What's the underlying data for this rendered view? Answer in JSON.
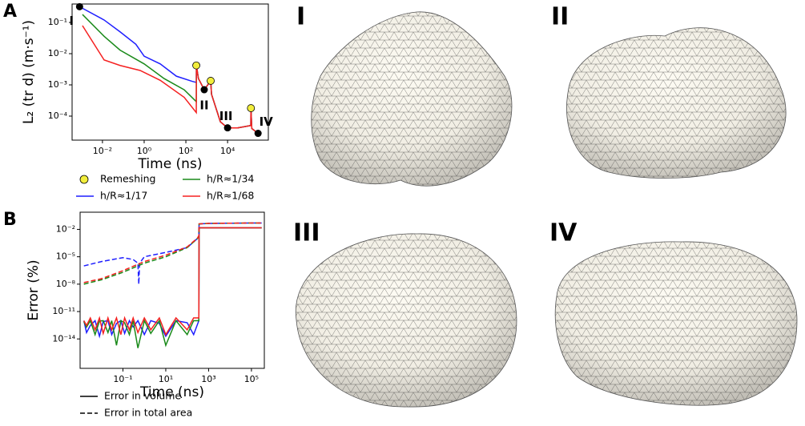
{
  "chart_data": [
    {
      "type": "line",
      "panel": "A",
      "xlabel": "Time (ns)",
      "ylabel": "L₂ (tr d) (m·s⁻¹)",
      "xscale": "log",
      "yscale": "log",
      "xlim": [
        0.00035,
        900000
      ],
      "ylim": [
        1.7e-05,
        0.39
      ],
      "xticks": [
        {
          "value": 0.01,
          "label": "10⁻²"
        },
        {
          "value": 1,
          "label": "10⁰"
        },
        {
          "value": 100,
          "label": "10²"
        },
        {
          "value": 10000,
          "label": "10⁴"
        }
      ],
      "yticks": [
        {
          "value": 0.0001,
          "label": "10⁻⁴"
        },
        {
          "value": 0.001,
          "label": "10⁻³"
        },
        {
          "value": 0.01,
          "label": "10⁻²"
        },
        {
          "value": 0.1,
          "label": "10⁻¹"
        }
      ],
      "series": [
        {
          "name": "Remeshing",
          "color": "#f2ee3c",
          "marker": "o",
          "x": [
            316,
            1550,
            132000
          ],
          "values": [
            0.0042,
            0.00135,
            0.00018
          ]
        },
        {
          "name": "h/R≈1/17",
          "color": "#1f1fff",
          "x": [
            0.0008,
            0.012,
            0.07,
            0.4,
            1,
            5.9,
            35,
            200,
            316,
            320,
            400,
            760,
            1550,
            1700,
            4500,
            10000,
            30000,
            130000,
            132000,
            145000,
            290000
          ],
          "values": [
            0.32,
            0.12,
            0.05,
            0.02,
            0.0083,
            0.0047,
            0.0019,
            0.0013,
            0.0012,
            0.0042,
            0.0016,
            0.0007,
            0.00135,
            0.0005,
            6.6e-05,
            4.2e-05,
            4.2e-05,
            5e-05,
            0.00018,
            4e-05,
            2.8e-05
          ]
        },
        {
          "name": "h/R≈1/34",
          "color": "#1a8a1a",
          "x": [
            0.0011,
            0.012,
            0.07,
            1,
            9,
            83,
            316,
            320,
            400,
            760,
            1550,
            1700,
            4500,
            10000,
            30000,
            130000,
            132000,
            145000,
            290000
          ],
          "values": [
            0.18,
            0.036,
            0.013,
            0.0047,
            0.0016,
            0.0007,
            0.00029,
            0.0042,
            0.0016,
            0.0007,
            0.00135,
            0.0005,
            6.6e-05,
            4.2e-05,
            4.2e-05,
            5e-05,
            0.00018,
            4e-05,
            2.8e-05
          ]
        },
        {
          "name": "h/R≈1/68",
          "color": "#f52020",
          "x": [
            0.0011,
            0.012,
            0.07,
            0.64,
            5.9,
            83,
            316,
            320,
            400,
            760,
            1550,
            1700,
            4500,
            10000,
            30000,
            130000,
            132000,
            145000,
            290000
          ],
          "values": [
            0.079,
            0.0063,
            0.0042,
            0.0029,
            0.0014,
            0.0004,
            0.00013,
            0.0042,
            0.0016,
            0.0007,
            0.00135,
            0.0005,
            6.6e-05,
            4.2e-05,
            4.2e-05,
            5e-05,
            0.00018,
            4e-05,
            2.8e-05
          ]
        }
      ],
      "annotations": [
        {
          "text": "I",
          "x": 0.0008,
          "y": 0.32
        },
        {
          "text": "II",
          "x": 760,
          "y": 0.0007
        },
        {
          "text": "III",
          "x": 10000,
          "y": 4.2e-05
        },
        {
          "text": "IV",
          "x": 290000,
          "y": 2.8e-05
        }
      ]
    },
    {
      "type": "line",
      "panel": "B",
      "xlabel": "Time (ns)",
      "ylabel": "Error (%)",
      "xscale": "log",
      "yscale": "log",
      "xlim": [
        0.001,
        400000
      ],
      "ylim": [
        6e-18,
        0.76
      ],
      "xticks": [
        {
          "value": 0.1,
          "label": "10⁻¹"
        },
        {
          "value": 10,
          "label": "10¹"
        },
        {
          "value": 1000,
          "label": "10³"
        },
        {
          "value": 100000,
          "label": "10⁵"
        }
      ],
      "yticks": [
        {
          "value": 1e-14,
          "label": "10⁻¹⁴"
        },
        {
          "value": 1e-11,
          "label": "10⁻¹¹"
        },
        {
          "value": 1e-08,
          "label": "10⁻⁸"
        },
        {
          "value": 1e-05,
          "label": "10⁻⁵"
        },
        {
          "value": 0.01,
          "label": "10⁻²"
        }
      ],
      "series": [
        {
          "name": "Error in volume",
          "color": "#000000",
          "dash": "solid"
        },
        {
          "name": "Error in total area",
          "color": "#000000",
          "dash": "dashed"
        }
      ],
      "lines": [
        {
          "color": "#1f1fff",
          "dash": "solid",
          "x": [
            0.0015,
            0.002,
            0.003,
            0.005,
            0.008,
            0.012,
            0.02,
            0.03,
            0.05,
            0.08,
            0.12,
            0.2,
            0.3,
            0.5,
            1,
            2,
            5,
            10,
            30,
            100,
            200,
            350,
            360,
            300000
          ],
          "values": [
            1e-12,
            5e-14,
            3e-13,
            1e-12,
            2e-14,
            8e-13,
            1e-12,
            3e-14,
            5e-13,
            1e-12,
            4e-14,
            1e-12,
            2e-13,
            1e-12,
            3e-14,
            1e-12,
            5e-13,
            2e-14,
            1e-12,
            6e-13,
            3e-14,
            1e-12,
            0.015,
            0.015
          ]
        },
        {
          "color": "#1a8a1a",
          "dash": "solid",
          "x": [
            0.0015,
            0.002,
            0.003,
            0.005,
            0.008,
            0.012,
            0.02,
            0.03,
            0.05,
            0.08,
            0.12,
            0.2,
            0.3,
            0.5,
            1,
            2,
            5,
            10,
            30,
            100,
            200,
            350,
            360,
            300000
          ],
          "values": [
            8e-13,
            2e-13,
            1e-12,
            3e-14,
            9e-13,
            1e-12,
            5e-14,
            1e-12,
            2e-15,
            1e-12,
            6e-13,
            3e-14,
            1e-12,
            1e-15,
            1e-12,
            4e-14,
            1e-12,
            2e-15,
            1e-12,
            3e-14,
            1e-12,
            1e-12,
            0.015,
            0.015
          ]
        },
        {
          "color": "#f52020",
          "dash": "solid",
          "x": [
            0.0015,
            0.002,
            0.003,
            0.005,
            0.008,
            0.012,
            0.02,
            0.03,
            0.05,
            0.08,
            0.12,
            0.2,
            0.3,
            0.5,
            1,
            2,
            5,
            10,
            30,
            100,
            200,
            350,
            360,
            300000
          ],
          "values": [
            1e-12,
            3e-13,
            2e-12,
            1e-13,
            2e-12,
            4e-14,
            2e-12,
            1e-13,
            2e-12,
            3e-14,
            2e-12,
            1e-13,
            2e-12,
            5e-14,
            2e-12,
            1e-13,
            2e-12,
            3e-14,
            2e-12,
            1e-13,
            2e-12,
            2e-12,
            0.015,
            0.015
          ]
        },
        {
          "color": "#1f1fff",
          "dash": "dashed",
          "x": [
            0.0015,
            0.01,
            0.1,
            0.3,
            0.5,
            0.55,
            0.6,
            1,
            10,
            100,
            300,
            350,
            360,
            1000,
            100000,
            300000
          ],
          "values": [
            1e-06,
            3e-06,
            8e-06,
            5e-06,
            2e-06,
            1e-08,
            2e-06,
            1e-05,
            3e-05,
            0.0001,
            0.001,
            0.002,
            0.04,
            0.045,
            0.05,
            0.05
          ]
        },
        {
          "color": "#1a8a1a",
          "dash": "dashed",
          "x": [
            0.0015,
            0.01,
            0.1,
            1,
            10,
            100,
            300,
            350,
            360,
            1000,
            100000,
            300000
          ],
          "values": [
            1e-08,
            3e-08,
            2e-07,
            2e-06,
            1e-05,
            0.0001,
            0.001,
            0.002,
            0.04,
            0.045,
            0.05,
            0.05
          ]
        },
        {
          "color": "#f52020",
          "dash": "dashed",
          "x": [
            0.0015,
            0.01,
            0.1,
            1,
            10,
            100,
            300,
            350,
            360,
            1000,
            100000,
            300000
          ],
          "values": [
            1.5e-08,
            4e-08,
            3e-07,
            3e-06,
            1.5e-05,
            0.00012,
            0.0011,
            0.002,
            0.04,
            0.045,
            0.05,
            0.05
          ]
        }
      ]
    }
  ]
}
